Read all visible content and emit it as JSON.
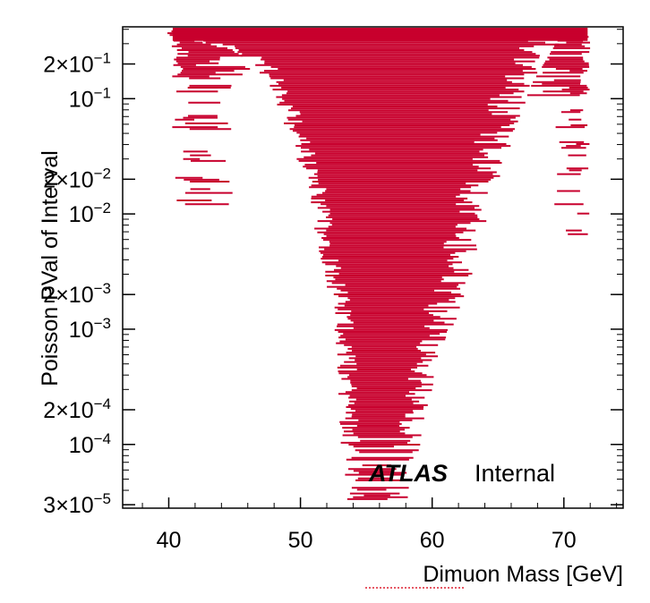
{
  "chart_data": {
    "type": "bar",
    "title": "",
    "xlabel": "Dimuon Mass [GeV]",
    "ylabel": "Poisson PVal of Interval",
    "xlim": [
      36.5,
      74.5
    ],
    "ylim": [
      2.8e-05,
      0.42
    ],
    "y_scale": "log",
    "x_ticks": [
      {
        "value": 40,
        "label": "40"
      },
      {
        "value": 50,
        "label": "50"
      },
      {
        "value": 60,
        "label": "60"
      },
      {
        "value": 70,
        "label": "70"
      }
    ],
    "y_ticks": [
      {
        "value": 0.2,
        "mantissa": "2×10",
        "exp": "−1"
      },
      {
        "value": 0.1,
        "mantissa": "10",
        "exp": "−1"
      },
      {
        "value": 0.02,
        "mantissa": "2×10",
        "exp": "−2"
      },
      {
        "value": 0.01,
        "mantissa": "10",
        "exp": "−2"
      },
      {
        "value": 0.002,
        "mantissa": "2×10",
        "exp": "−3"
      },
      {
        "value": 0.001,
        "mantissa": "10",
        "exp": "−3"
      },
      {
        "value": 0.0002,
        "mantissa": "2×10",
        "exp": "−4"
      },
      {
        "value": 0.0001,
        "mantissa": "10",
        "exp": "−4"
      },
      {
        "value": 3e-05,
        "mantissa": "3×10",
        "exp": "−5"
      }
    ],
    "series_color": "#c8002d",
    "envelope_description_points": {
      "core_left": [
        [
          40.2,
          0.36
        ],
        [
          45,
          0.27
        ],
        [
          47,
          0.2
        ],
        [
          49,
          0.07
        ],
        [
          50,
          0.035
        ],
        [
          51,
          0.015
        ],
        [
          52,
          0.004
        ],
        [
          53,
          0.0012
        ],
        [
          53.5,
          0.00012
        ],
        [
          53.8,
          3e-05
        ]
      ],
      "core_right": [
        [
          69.5,
          0.36
        ],
        [
          67,
          0.12
        ],
        [
          65,
          0.03
        ],
        [
          63.5,
          0.008
        ],
        [
          62,
          0.002
        ],
        [
          60.5,
          0.0007
        ],
        [
          59.5,
          0.00025
        ],
        [
          58.8,
          0.0001
        ],
        [
          58,
          3e-05
        ]
      ]
    },
    "annotation": {
      "bold": "ATLAS",
      "normal": "Internal"
    }
  }
}
